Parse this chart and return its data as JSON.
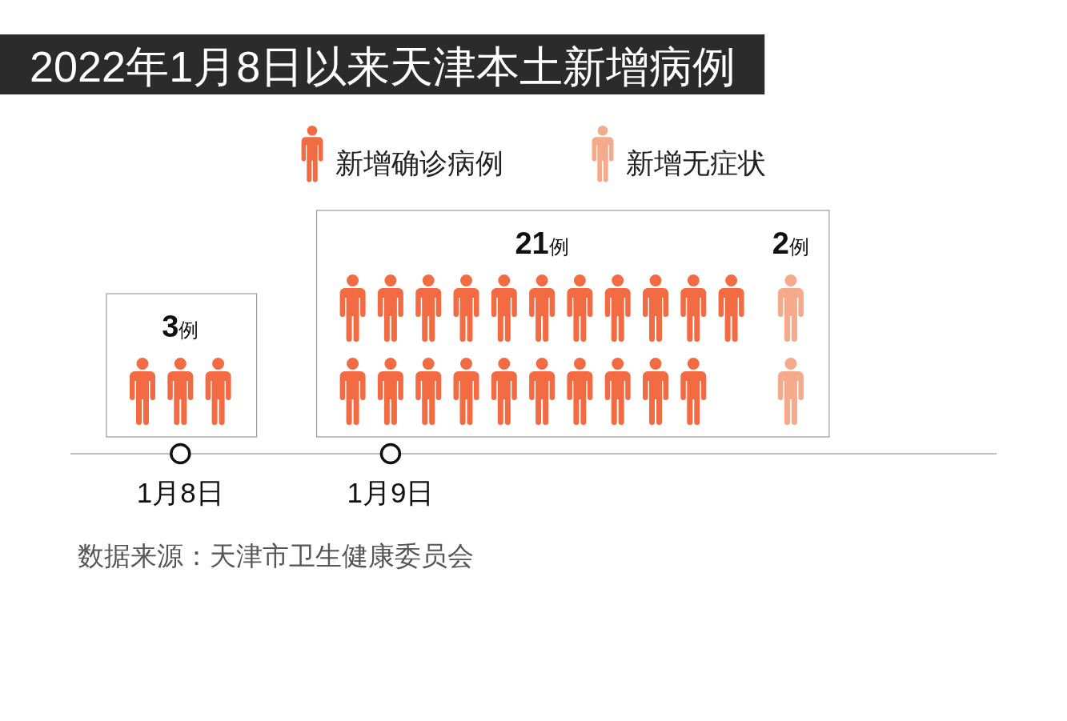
{
  "chart_data": {
    "type": "other",
    "title": "2022年1月8日以来天津本土新增病例",
    "categories": [
      "1月8日",
      "1月9日"
    ],
    "series": [
      {
        "name": "新增确诊病例",
        "color": "#f36b43",
        "values": [
          3,
          21
        ],
        "value_labels": [
          "3例",
          "21例"
        ]
      },
      {
        "name": "新增无症状",
        "color": "#f5aa8c",
        "values": [
          null,
          2
        ],
        "value_labels": [
          null,
          "2例"
        ]
      }
    ],
    "legend": "top",
    "annotations": [
      "数据来源：天津市卫生健康委员会"
    ]
  }
}
